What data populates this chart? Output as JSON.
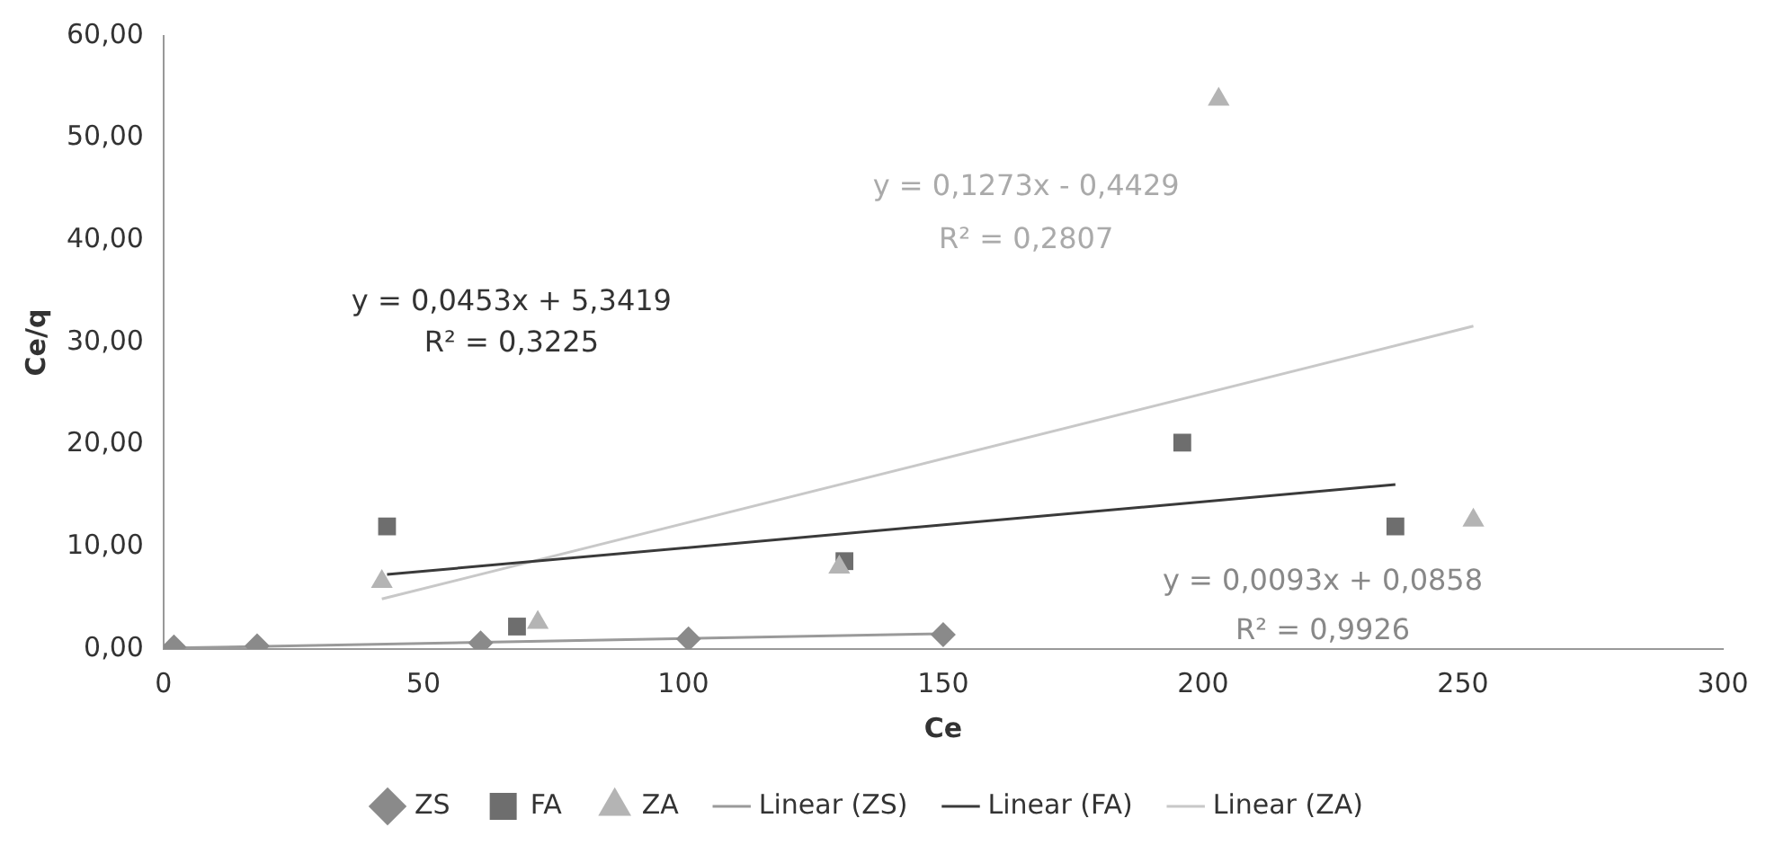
{
  "chart_data": {
    "type": "scatter",
    "xlabel": "Ce",
    "ylabel": "Ce/q",
    "xlim": [
      0,
      300
    ],
    "xticks": [
      0,
      50,
      100,
      150,
      200,
      250,
      300
    ],
    "ylim": [
      0,
      60
    ],
    "yticks": [
      {
        "value": 0,
        "label": "0,00"
      },
      {
        "value": 10,
        "label": "10,00"
      },
      {
        "value": 20,
        "label": "20,00"
      },
      {
        "value": 30,
        "label": "30,00"
      },
      {
        "value": 40,
        "label": "40,00"
      },
      {
        "value": 50,
        "label": "50,00"
      },
      {
        "value": 60,
        "label": "60,00"
      }
    ],
    "grid": false,
    "legend": "bottom",
    "series": [
      {
        "name": "ZS",
        "marker": "diamond",
        "color": "#8a8a8a",
        "x": [
          2,
          18,
          61,
          101,
          150
        ],
        "values": [
          0.2,
          0.3,
          0.6,
          1.0,
          1.4
        ]
      },
      {
        "name": "FA",
        "marker": "square",
        "color": "#6e6e6e",
        "x": [
          43,
          68,
          131,
          196,
          237
        ],
        "values": [
          12,
          2.2,
          8.6,
          20.2,
          12
        ]
      },
      {
        "name": "ZA",
        "marker": "triangle",
        "color": "#b4b4b4",
        "x": [
          42,
          72,
          130,
          203,
          252
        ],
        "values": [
          6.6,
          2.6,
          8,
          53.8,
          12.6
        ]
      },
      {
        "name": "Linear (ZS)",
        "type": "line",
        "marker": "none",
        "color": "#9a9a9a",
        "x": [
          2,
          150
        ],
        "values": [
          0.1,
          1.5
        ]
      },
      {
        "name": "Linear (FA)",
        "type": "line",
        "marker": "none",
        "color": "#3a3a3a",
        "x": [
          43,
          237
        ],
        "values": [
          7.3,
          16.1
        ]
      },
      {
        "name": "Linear (ZA)",
        "type": "line",
        "marker": "none",
        "color": "#c8c8c8",
        "x": [
          42,
          252
        ],
        "values": [
          4.9,
          31.6
        ]
      }
    ],
    "annotations": [
      "y = 0,0453x + 5,3419",
      "R² = 0,3225",
      "y = 0,1273x - 0,4429",
      "R² = 0,2807",
      "y = 0,0093x + 0,0858",
      "R² = 0,9926"
    ]
  }
}
